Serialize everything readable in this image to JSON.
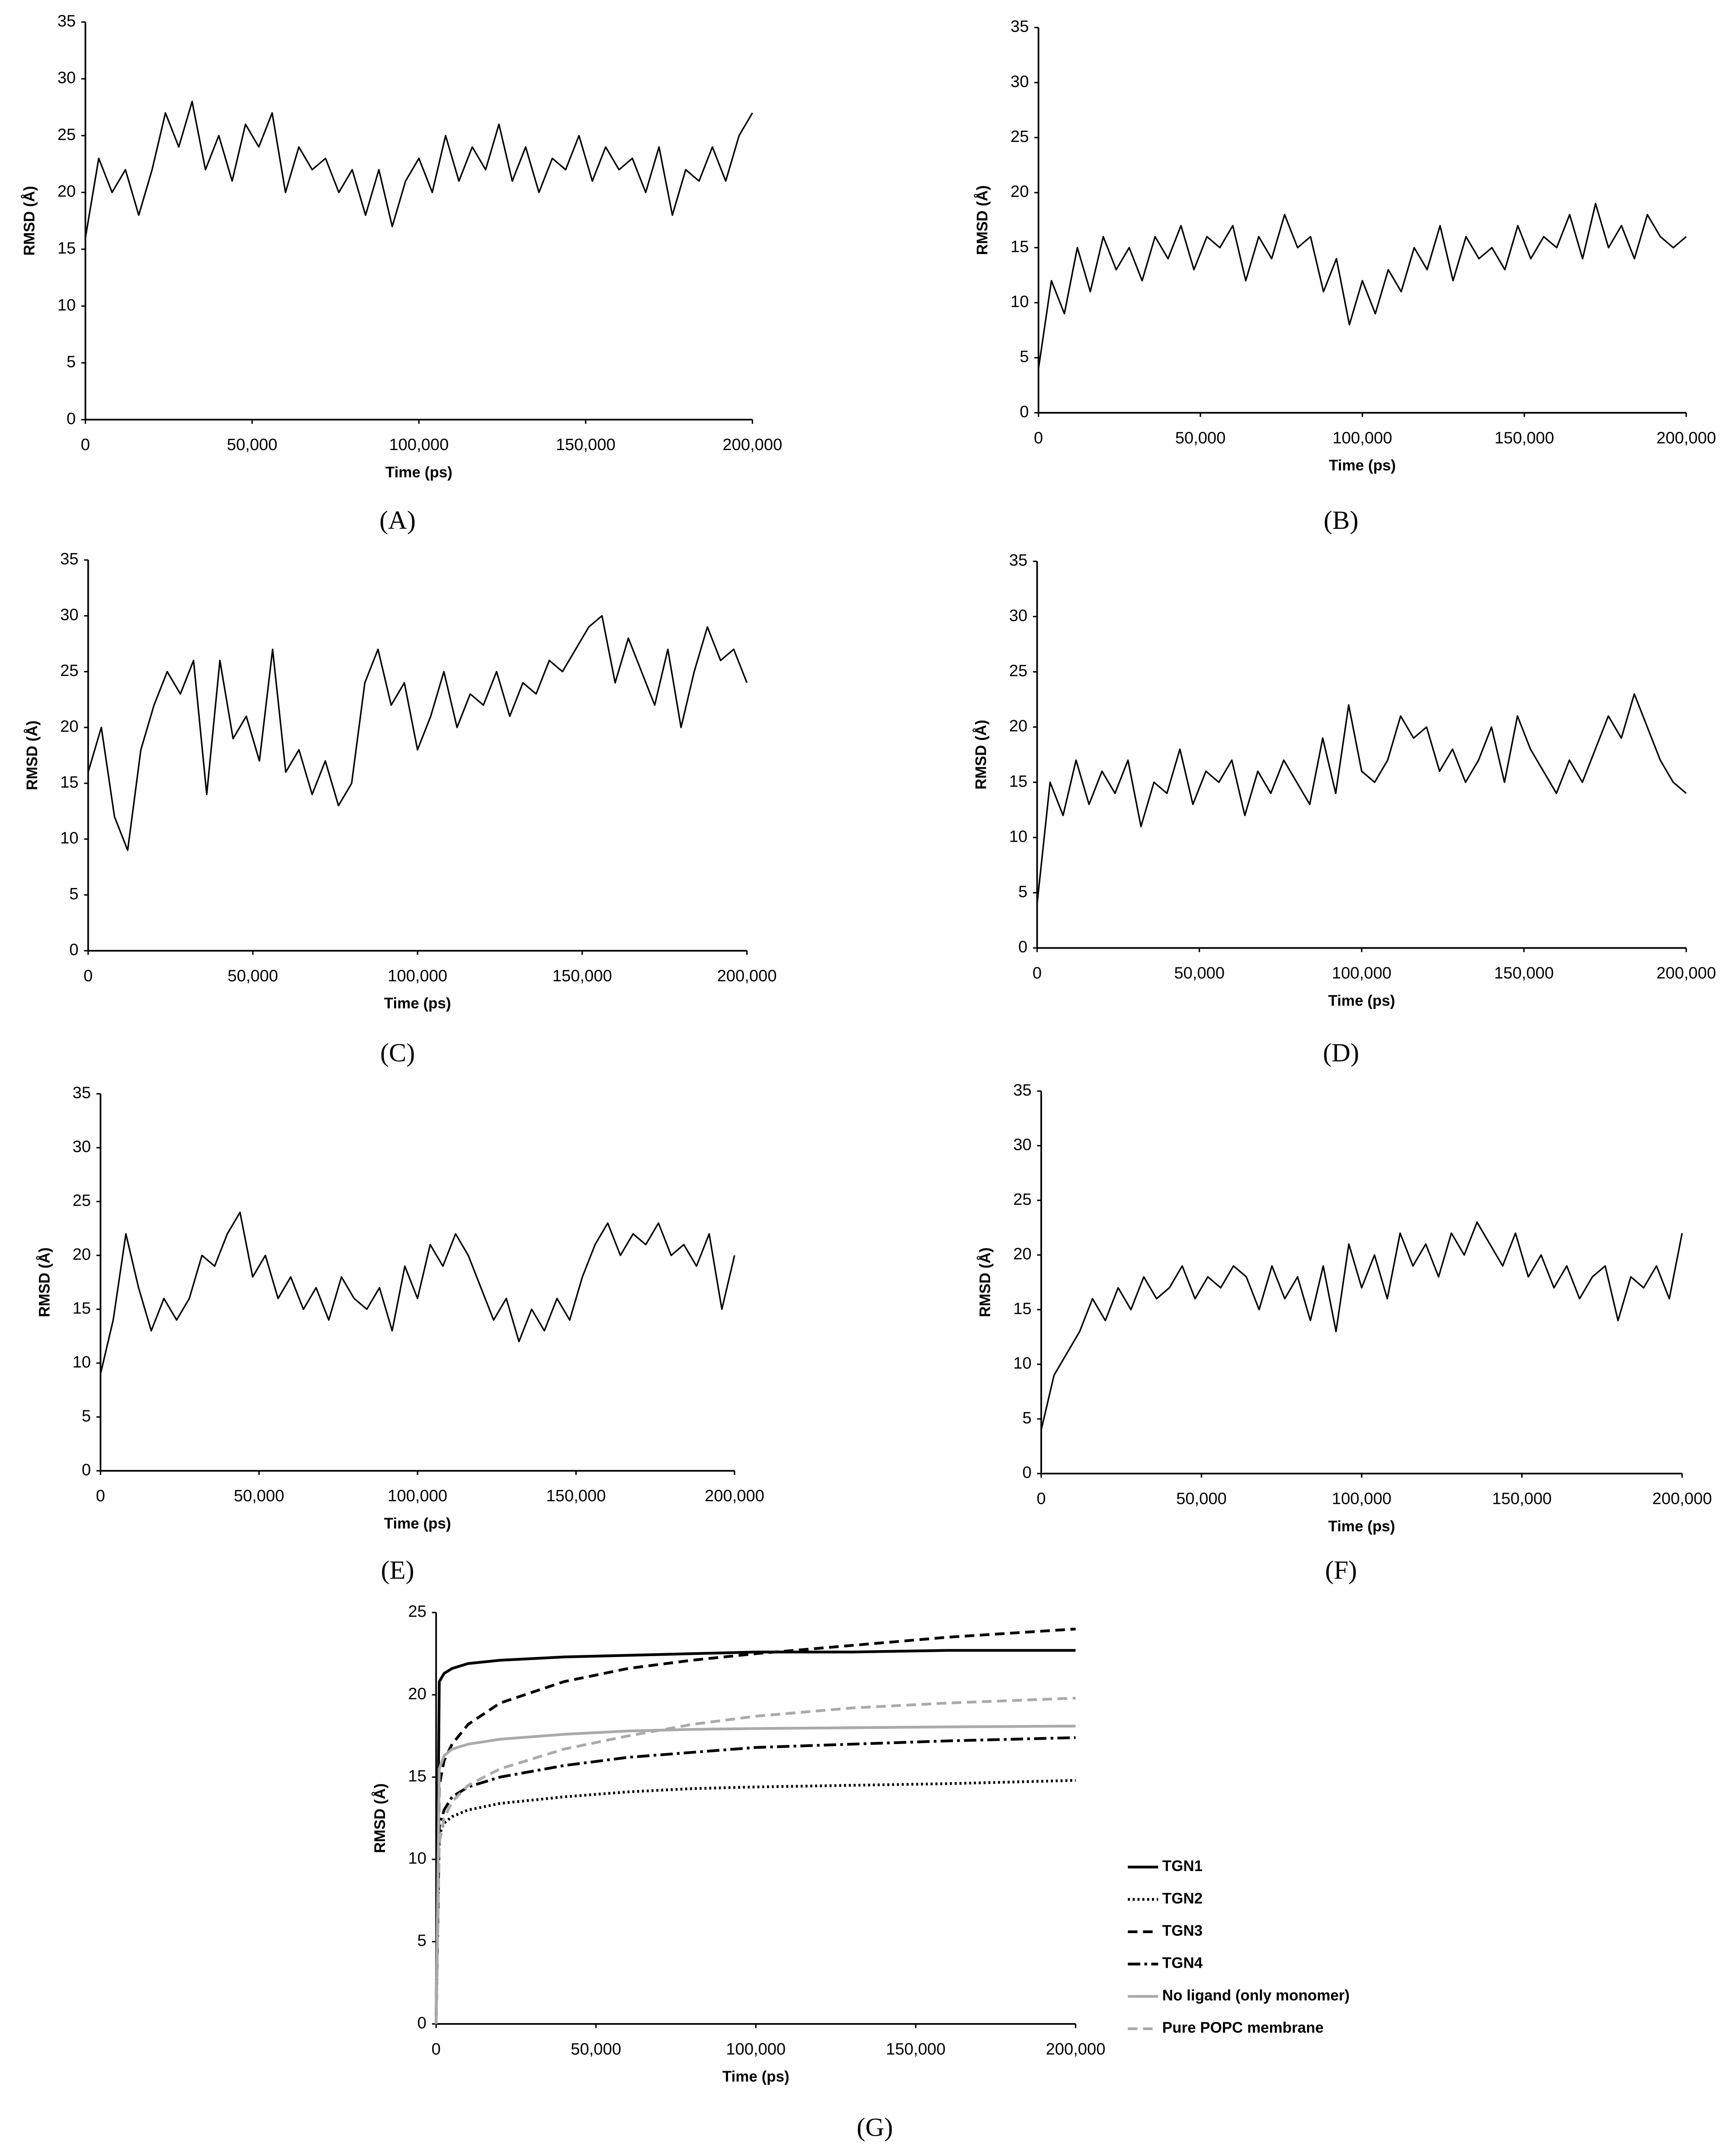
{
  "chart_data": [
    {
      "type": "line",
      "label": "(A)",
      "xlabel": "Time (ps)",
      "ylabel": "RMSD (Å)",
      "color": "#000000",
      "x": [
        0,
        4000,
        8000,
        12000,
        16000,
        20000,
        24000,
        28000,
        32000,
        36000,
        40000,
        44000,
        48000,
        52000,
        56000,
        60000,
        64000,
        68000,
        72000,
        76000,
        80000,
        84000,
        88000,
        92000,
        96000,
        100000,
        104000,
        108000,
        112000,
        116000,
        120000,
        124000,
        128000,
        132000,
        136000,
        140000,
        144000,
        148000,
        152000,
        156000,
        160000,
        164000,
        168000,
        172000,
        176000,
        180000,
        184000,
        188000,
        192000,
        196000,
        200000
      ],
      "values": [
        16,
        23,
        20,
        22,
        18,
        22,
        27,
        24,
        28,
        22,
        25,
        21,
        26,
        24,
        27,
        20,
        24,
        22,
        23,
        20,
        22,
        18,
        22,
        17,
        21,
        23,
        20,
        25,
        21,
        24,
        22,
        26,
        21,
        24,
        20,
        23,
        22,
        25,
        21,
        24,
        22,
        23,
        20,
        24,
        18,
        22,
        21,
        24,
        21,
        25,
        27
      ],
      "xlim": [
        0,
        200000
      ],
      "ylim": [
        0,
        35
      ],
      "xticks": [
        0,
        {
          "value": 50000,
          "label": "50,000"
        },
        {
          "value": 100000,
          "label": "100,000"
        },
        {
          "value": 150000,
          "label": "150,000"
        },
        {
          "value": 200000,
          "label": "200,000"
        }
      ],
      "yticks": [
        0,
        5,
        10,
        15,
        20,
        25,
        30,
        35
      ]
    },
    {
      "type": "line",
      "label": "(B)",
      "xlabel": "Time (ps)",
      "ylabel": "RMSD (Å)",
      "color": "#000000",
      "x": [
        0,
        4000,
        8000,
        12000,
        16000,
        20000,
        24000,
        28000,
        32000,
        36000,
        40000,
        44000,
        48000,
        52000,
        56000,
        60000,
        64000,
        68000,
        72000,
        76000,
        80000,
        84000,
        88000,
        92000,
        96000,
        100000,
        104000,
        108000,
        112000,
        116000,
        120000,
        124000,
        128000,
        132000,
        136000,
        140000,
        144000,
        148000,
        152000,
        156000,
        160000,
        164000,
        168000,
        172000,
        176000,
        180000,
        184000,
        188000,
        192000,
        196000,
        200000
      ],
      "values": [
        4,
        12,
        9,
        15,
        11,
        16,
        13,
        15,
        12,
        16,
        14,
        17,
        13,
        16,
        15,
        17,
        12,
        16,
        14,
        18,
        15,
        16,
        11,
        14,
        8,
        12,
        9,
        13,
        11,
        15,
        13,
        17,
        12,
        16,
        14,
        15,
        13,
        17,
        14,
        16,
        15,
        18,
        14,
        19,
        15,
        17,
        14,
        18,
        16,
        15,
        16
      ],
      "xlim": [
        0,
        200000
      ],
      "ylim": [
        0,
        35
      ],
      "xticks": [
        0,
        {
          "value": 50000,
          "label": "50,000"
        },
        {
          "value": 100000,
          "label": "100,000"
        },
        {
          "value": 150000,
          "label": "150,000"
        },
        {
          "value": 200000,
          "label": "200,000"
        }
      ],
      "yticks": [
        0,
        5,
        10,
        15,
        20,
        25,
        30,
        35
      ]
    },
    {
      "type": "line",
      "label": "(C)",
      "xlabel": "Time (ps)",
      "ylabel": "RMSD (Å)",
      "color": "#000000",
      "x": [
        0,
        4000,
        8000,
        12000,
        16000,
        20000,
        24000,
        28000,
        32000,
        36000,
        40000,
        44000,
        48000,
        52000,
        56000,
        60000,
        64000,
        68000,
        72000,
        76000,
        80000,
        84000,
        88000,
        92000,
        96000,
        100000,
        104000,
        108000,
        112000,
        116000,
        120000,
        124000,
        128000,
        132000,
        136000,
        140000,
        144000,
        148000,
        152000,
        156000,
        160000,
        164000,
        168000,
        172000,
        176000,
        180000,
        184000,
        188000,
        192000,
        196000,
        200000
      ],
      "values": [
        16,
        20,
        12,
        9,
        18,
        22,
        25,
        23,
        26,
        14,
        26,
        19,
        21,
        17,
        27,
        16,
        18,
        14,
        17,
        13,
        15,
        24,
        27,
        22,
        24,
        18,
        21,
        25,
        20,
        23,
        22,
        25,
        21,
        24,
        23,
        26,
        25,
        27,
        29,
        30,
        24,
        28,
        25,
        22,
        27,
        20,
        25,
        29,
        26,
        27,
        24
      ],
      "xlim": [
        0,
        200000
      ],
      "ylim": [
        0,
        35
      ],
      "xticks": [
        0,
        {
          "value": 50000,
          "label": "50,000"
        },
        {
          "value": 100000,
          "label": "100,000"
        },
        {
          "value": 150000,
          "label": "150,000"
        },
        {
          "value": 200000,
          "label": "200,000"
        }
      ],
      "yticks": [
        0,
        5,
        10,
        15,
        20,
        25,
        30,
        35
      ]
    },
    {
      "type": "line",
      "label": "(D)",
      "xlabel": "Time (ps)",
      "ylabel": "RMSD (Å)",
      "color": "#000000",
      "x": [
        0,
        4000,
        8000,
        12000,
        16000,
        20000,
        24000,
        28000,
        32000,
        36000,
        40000,
        44000,
        48000,
        52000,
        56000,
        60000,
        64000,
        68000,
        72000,
        76000,
        80000,
        84000,
        88000,
        92000,
        96000,
        100000,
        104000,
        108000,
        112000,
        116000,
        120000,
        124000,
        128000,
        132000,
        136000,
        140000,
        144000,
        148000,
        152000,
        156000,
        160000,
        164000,
        168000,
        172000,
        176000,
        180000,
        184000,
        188000,
        192000,
        196000,
        200000
      ],
      "values": [
        4,
        15,
        12,
        17,
        13,
        16,
        14,
        17,
        11,
        15,
        14,
        18,
        13,
        16,
        15,
        17,
        12,
        16,
        14,
        17,
        15,
        13,
        19,
        14,
        22,
        16,
        15,
        17,
        21,
        19,
        20,
        16,
        18,
        15,
        17,
        20,
        15,
        21,
        18,
        16,
        14,
        17,
        15,
        18,
        21,
        19,
        23,
        20,
        17,
        15,
        14
      ],
      "xlim": [
        0,
        200000
      ],
      "ylim": [
        0,
        35
      ],
      "xticks": [
        0,
        {
          "value": 50000,
          "label": "50,000"
        },
        {
          "value": 100000,
          "label": "100,000"
        },
        {
          "value": 150000,
          "label": "150,000"
        },
        {
          "value": 200000,
          "label": "200,000"
        }
      ],
      "yticks": [
        0,
        5,
        10,
        15,
        20,
        25,
        30,
        35
      ]
    },
    {
      "type": "line",
      "label": "(E)",
      "xlabel": "Time (ps)",
      "ylabel": "RMSD (Å)",
      "color": "#000000",
      "x": [
        0,
        4000,
        8000,
        12000,
        16000,
        20000,
        24000,
        28000,
        32000,
        36000,
        40000,
        44000,
        48000,
        52000,
        56000,
        60000,
        64000,
        68000,
        72000,
        76000,
        80000,
        84000,
        88000,
        92000,
        96000,
        100000,
        104000,
        108000,
        112000,
        116000,
        120000,
        124000,
        128000,
        132000,
        136000,
        140000,
        144000,
        148000,
        152000,
        156000,
        160000,
        164000,
        168000,
        172000,
        176000,
        180000,
        184000,
        188000,
        192000,
        196000,
        200000
      ],
      "values": [
        9,
        14,
        22,
        17,
        13,
        16,
        14,
        16,
        20,
        19,
        22,
        24,
        18,
        20,
        16,
        18,
        15,
        17,
        14,
        18,
        16,
        15,
        17,
        13,
        19,
        16,
        21,
        19,
        22,
        20,
        17,
        14,
        16,
        12,
        15,
        13,
        16,
        14,
        18,
        21,
        23,
        20,
        22,
        21,
        23,
        20,
        21,
        19,
        22,
        15,
        20
      ],
      "xlim": [
        0,
        200000
      ],
      "ylim": [
        0,
        35
      ],
      "xticks": [
        0,
        {
          "value": 50000,
          "label": "50,000"
        },
        {
          "value": 100000,
          "label": "100,000"
        },
        {
          "value": 150000,
          "label": "150,000"
        },
        {
          "value": 200000,
          "label": "200,000"
        }
      ],
      "yticks": [
        0,
        5,
        10,
        15,
        20,
        25,
        30,
        35
      ]
    },
    {
      "type": "line",
      "label": "(F)",
      "xlabel": "Time (ps)",
      "ylabel": "RMSD (Å)",
      "color": "#000000",
      "x": [
        0,
        4000,
        8000,
        12000,
        16000,
        20000,
        24000,
        28000,
        32000,
        36000,
        40000,
        44000,
        48000,
        52000,
        56000,
        60000,
        64000,
        68000,
        72000,
        76000,
        80000,
        84000,
        88000,
        92000,
        96000,
        100000,
        104000,
        108000,
        112000,
        116000,
        120000,
        124000,
        128000,
        132000,
        136000,
        140000,
        144000,
        148000,
        152000,
        156000,
        160000,
        164000,
        168000,
        172000,
        176000,
        180000,
        184000,
        188000,
        192000,
        196000,
        200000
      ],
      "values": [
        4,
        9,
        11,
        13,
        16,
        14,
        17,
        15,
        18,
        16,
        17,
        19,
        16,
        18,
        17,
        19,
        18,
        15,
        19,
        16,
        18,
        14,
        19,
        13,
        21,
        17,
        20,
        16,
        22,
        19,
        21,
        18,
        22,
        20,
        23,
        21,
        19,
        22,
        18,
        20,
        17,
        19,
        16,
        18,
        19,
        14,
        18,
        17,
        19,
        16,
        22
      ],
      "xlim": [
        0,
        200000
      ],
      "ylim": [
        0,
        35
      ],
      "xticks": [
        0,
        {
          "value": 50000,
          "label": "50,000"
        },
        {
          "value": 100000,
          "label": "100,000"
        },
        {
          "value": 150000,
          "label": "150,000"
        },
        {
          "value": 200000,
          "label": "200,000"
        }
      ],
      "yticks": [
        0,
        5,
        10,
        15,
        20,
        25,
        30,
        35
      ]
    },
    {
      "type": "line",
      "label": "(G)",
      "xlabel": "Time (ps)",
      "ylabel": "RMSD (Å)",
      "legend": "right",
      "x": [
        0,
        1000,
        2500,
        5000,
        10000,
        20000,
        40000,
        60000,
        80000,
        100000,
        130000,
        160000,
        200000
      ],
      "series": [
        {
          "name": "TGN1",
          "color": "#000000",
          "linestyle": "solid",
          "values": [
            0,
            20.8,
            21.3,
            21.6,
            21.9,
            22.1,
            22.3,
            22.4,
            22.5,
            22.6,
            22.6,
            22.7,
            22.7
          ]
        },
        {
          "name": "TGN2",
          "color": "#000000",
          "linestyle": "dotted",
          "values": [
            0,
            11.5,
            12.2,
            12.6,
            13.0,
            13.4,
            13.8,
            14.1,
            14.3,
            14.4,
            14.5,
            14.6,
            14.8
          ]
        },
        {
          "name": "TGN3",
          "color": "#000000",
          "linestyle": "dashed",
          "values": [
            0,
            14.5,
            16,
            17,
            18.2,
            19.5,
            20.8,
            21.6,
            22.1,
            22.5,
            23,
            23.5,
            24
          ]
        },
        {
          "name": "TGN4",
          "color": "#000000",
          "linestyle": "dashdot",
          "values": [
            0,
            12,
            13,
            13.8,
            14.4,
            15,
            15.7,
            16.2,
            16.5,
            16.8,
            17,
            17.2,
            17.4
          ]
        },
        {
          "name": "No ligand (only monomer)",
          "color": "#aaaaaa",
          "linestyle": "solid",
          "values": [
            0,
            15.5,
            16.3,
            16.7,
            17,
            17.3,
            17.6,
            17.8,
            17.9,
            17.95,
            18,
            18.05,
            18.1
          ]
        },
        {
          "name": "Pure POPC membrane",
          "color": "#aaaaaa",
          "linestyle": "dashed",
          "values": [
            0,
            11,
            12.5,
            13.5,
            14.5,
            15.5,
            16.7,
            17.5,
            18.2,
            18.7,
            19.2,
            19.5,
            19.8
          ]
        }
      ],
      "xlim": [
        0,
        200000
      ],
      "ylim": [
        0,
        25
      ],
      "xticks": [
        0,
        {
          "value": 50000,
          "label": "50,000"
        },
        {
          "value": 100000,
          "label": "100,000"
        },
        {
          "value": 150000,
          "label": "150,000"
        },
        {
          "value": 200000,
          "label": "200,000"
        }
      ],
      "yticks": [
        0,
        5,
        10,
        15,
        20,
        25
      ]
    }
  ]
}
